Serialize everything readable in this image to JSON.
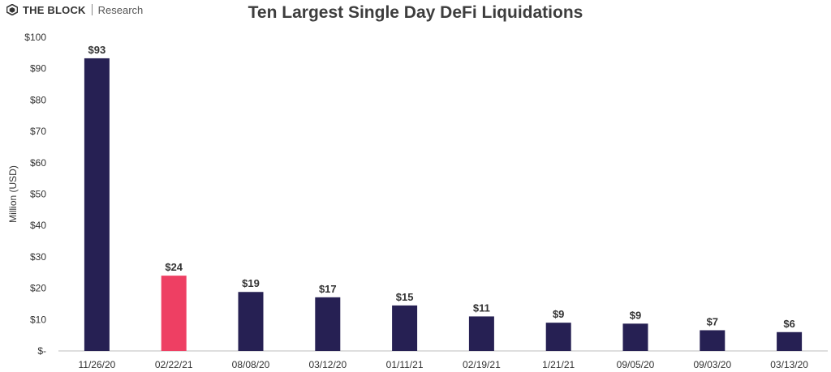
{
  "brand": {
    "name": "THE BLOCK",
    "sub": "Research"
  },
  "colors": {
    "bar": "#262053",
    "highlight": "#ee3f63"
  },
  "chart_data": {
    "type": "bar",
    "title": "Ten Largest Single Day DeFi Liquidations",
    "ylabel": "Million (USD)",
    "xlabel": "",
    "categories": [
      "11/26/20",
      "02/22/21",
      "08/08/20",
      "03/12/20",
      "01/11/21",
      "02/19/21",
      "1/21/21",
      "09/05/20",
      "09/03/20",
      "03/13/20"
    ],
    "values": [
      93.3,
      24.0,
      18.8,
      17.1,
      14.5,
      11.0,
      9.0,
      8.7,
      6.6,
      6.0
    ],
    "data_labels": [
      "$93",
      "$24",
      "$19",
      "$17",
      "$15",
      "$11",
      "$9",
      "$9",
      "$7",
      "$6"
    ],
    "highlight_index": 1,
    "ylim": [
      0,
      100
    ],
    "yticks": [
      0,
      10,
      20,
      30,
      40,
      50,
      60,
      70,
      80,
      90,
      100
    ],
    "ytick_labels": [
      "$-",
      "$10",
      "$20",
      "$30",
      "$40",
      "$50",
      "$60",
      "$70",
      "$80",
      "$90",
      "$100"
    ],
    "grid": false
  }
}
